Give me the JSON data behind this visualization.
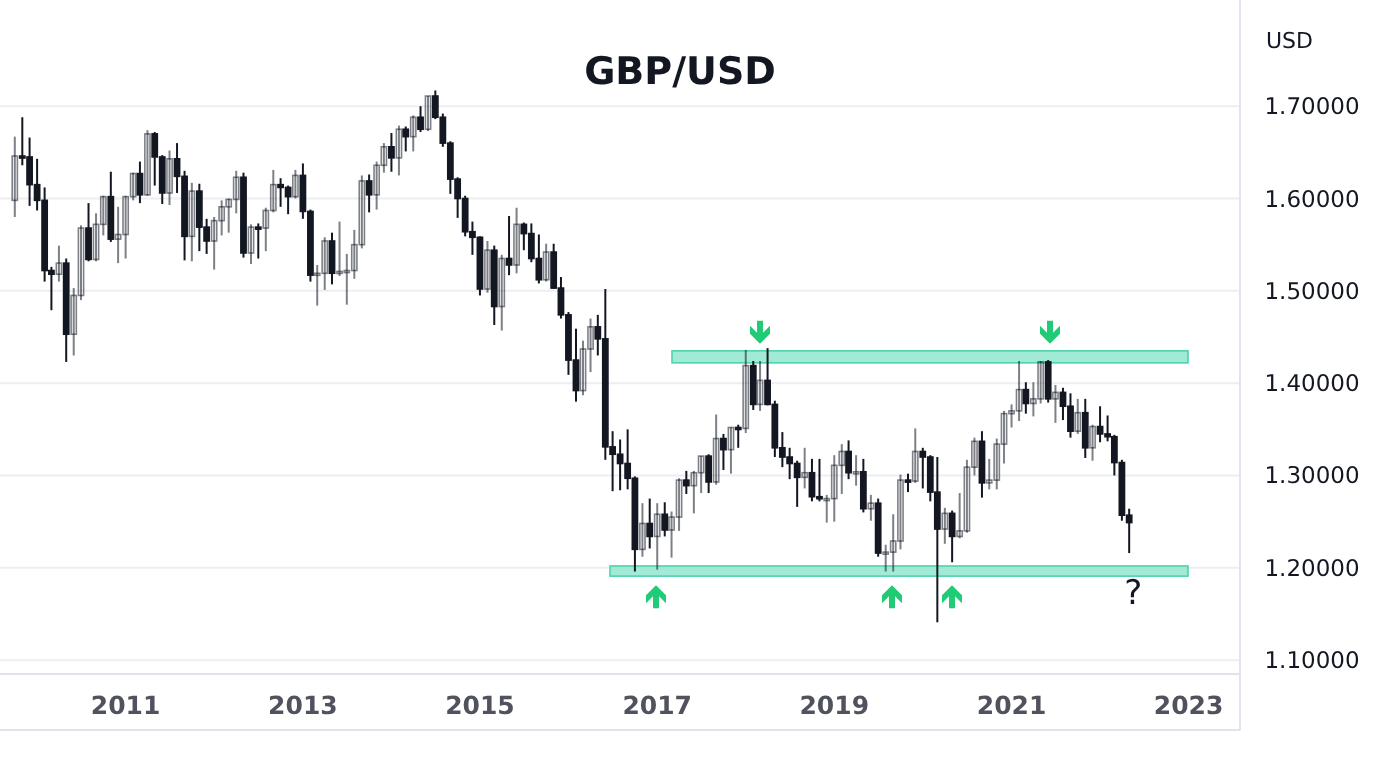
{
  "chart_data": {
    "type": "candlestick",
    "title": "GBP/USD",
    "ylabel": "USD",
    "xlim": [
      "2009-08",
      "2023-08"
    ],
    "xticks": [
      {
        "value": "2011",
        "label": "2011"
      },
      {
        "value": "2013",
        "label": "2013"
      },
      {
        "value": "2015",
        "label": "2015"
      },
      {
        "value": "2017",
        "label": "2017"
      },
      {
        "value": "2019",
        "label": "2019"
      },
      {
        "value": "2021",
        "label": "2021"
      },
      {
        "value": "2023",
        "label": "2023"
      }
    ],
    "ylim": [
      1.085,
      1.815
    ],
    "yticks": [
      {
        "value": 1.1,
        "label": "1.10000"
      },
      {
        "value": 1.2,
        "label": "1.20000"
      },
      {
        "value": 1.3,
        "label": "1.30000"
      },
      {
        "value": 1.4,
        "label": "1.40000"
      },
      {
        "value": 1.5,
        "label": "1.50000"
      },
      {
        "value": 1.6,
        "label": "1.60000"
      },
      {
        "value": 1.7,
        "label": "1.70000"
      }
    ],
    "grid": "y",
    "bands": [
      {
        "axis": "y",
        "from": 1.422,
        "to": 1.435,
        "color": "#8fe6cf"
      },
      {
        "axis": "y",
        "from": 1.191,
        "to": 1.202,
        "color": "#8fe6cf"
      }
    ],
    "annotations": [
      "?"
    ],
    "series": [
      {
        "color": "#131722",
        "x": [
          "2009-10",
          "2009-11",
          "2009-12",
          "2010-01",
          "2010-02",
          "2010-03",
          "2010-04",
          "2010-05",
          "2010-06",
          "2010-07",
          "2010-08",
          "2010-09",
          "2010-10",
          "2010-11",
          "2010-12",
          "2011-01",
          "2011-02",
          "2011-03",
          "2011-04",
          "2011-05",
          "2011-06",
          "2011-07",
          "2011-08",
          "2011-09",
          "2011-10",
          "2011-11",
          "2011-12",
          "2012-01",
          "2012-02",
          "2012-03",
          "2012-04",
          "2012-05",
          "2012-06",
          "2012-07",
          "2012-08",
          "2012-09",
          "2012-10",
          "2012-11",
          "2012-12",
          "2013-01",
          "2013-02",
          "2013-03",
          "2013-04",
          "2013-05",
          "2013-06",
          "2013-07",
          "2013-08",
          "2013-09",
          "2013-10",
          "2013-11",
          "2013-12",
          "2014-01",
          "2014-02",
          "2014-03",
          "2014-04",
          "2014-05",
          "2014-06",
          "2014-07",
          "2014-08",
          "2014-09",
          "2014-10",
          "2014-11",
          "2014-12",
          "2015-01",
          "2015-02",
          "2015-03",
          "2015-04",
          "2015-05",
          "2015-06",
          "2015-07",
          "2015-08",
          "2015-09",
          "2015-10",
          "2015-11",
          "2015-12",
          "2016-01",
          "2016-02",
          "2016-03",
          "2016-04",
          "2016-05",
          "2016-06",
          "2016-07",
          "2016-08",
          "2016-09",
          "2016-10",
          "2016-11",
          "2016-12",
          "2017-01",
          "2017-02",
          "2017-03",
          "2017-04",
          "2017-05",
          "2017-06",
          "2017-07",
          "2017-08",
          "2017-09",
          "2017-10",
          "2017-11",
          "2017-12",
          "2018-01",
          "2018-02",
          "2018-03",
          "2018-04",
          "2018-05",
          "2018-06",
          "2018-07",
          "2018-08",
          "2018-09",
          "2018-10",
          "2018-11",
          "2018-12",
          "2019-01",
          "2019-02",
          "2019-03",
          "2019-04",
          "2019-05",
          "2019-06",
          "2019-07",
          "2019-08",
          "2019-09",
          "2019-10",
          "2019-11",
          "2019-12",
          "2020-01",
          "2020-02",
          "2020-03",
          "2020-04",
          "2020-05",
          "2020-06",
          "2020-07",
          "2020-08",
          "2020-09",
          "2020-10",
          "2020-11",
          "2020-12",
          "2021-01",
          "2021-02",
          "2021-03",
          "2021-04",
          "2021-05",
          "2021-06",
          "2021-07",
          "2021-08",
          "2021-09",
          "2021-10",
          "2021-11",
          "2021-12",
          "2022-01",
          "2022-02",
          "2022-03",
          "2022-04",
          "2022-05"
        ],
        "ohlc": [
          [
            1.598,
            1.667,
            1.58,
            1.646
          ],
          [
            1.646,
            1.688,
            1.636,
            1.645
          ],
          [
            1.645,
            1.666,
            1.592,
            1.615
          ],
          [
            1.615,
            1.643,
            1.587,
            1.598
          ],
          [
            1.598,
            1.612,
            1.51,
            1.522
          ],
          [
            1.522,
            1.526,
            1.479,
            1.518
          ],
          [
            1.518,
            1.549,
            1.51,
            1.53
          ],
          [
            1.53,
            1.535,
            1.423,
            1.453
          ],
          [
            1.453,
            1.503,
            1.43,
            1.495
          ],
          [
            1.495,
            1.571,
            1.49,
            1.568
          ],
          [
            1.568,
            1.595,
            1.532,
            1.534
          ],
          [
            1.534,
            1.584,
            1.532,
            1.572
          ],
          [
            1.572,
            1.603,
            1.56,
            1.602
          ],
          [
            1.602,
            1.629,
            1.553,
            1.556
          ],
          [
            1.556,
            1.591,
            1.53,
            1.561
          ],
          [
            1.561,
            1.603,
            1.535,
            1.602
          ],
          [
            1.602,
            1.628,
            1.598,
            1.627
          ],
          [
            1.627,
            1.64,
            1.595,
            1.604
          ],
          [
            1.604,
            1.674,
            1.603,
            1.67
          ],
          [
            1.67,
            1.672,
            1.614,
            1.645
          ],
          [
            1.645,
            1.647,
            1.594,
            1.606
          ],
          [
            1.606,
            1.652,
            1.593,
            1.643
          ],
          [
            1.643,
            1.66,
            1.606,
            1.624
          ],
          [
            1.624,
            1.63,
            1.533,
            1.559
          ],
          [
            1.559,
            1.617,
            1.532,
            1.608
          ],
          [
            1.608,
            1.616,
            1.543,
            1.569
          ],
          [
            1.569,
            1.578,
            1.54,
            1.554
          ],
          [
            1.554,
            1.58,
            1.523,
            1.576
          ],
          [
            1.576,
            1.598,
            1.56,
            1.591
          ],
          [
            1.591,
            1.6,
            1.563,
            1.599
          ],
          [
            1.599,
            1.63,
            1.584,
            1.623
          ],
          [
            1.623,
            1.628,
            1.536,
            1.541
          ],
          [
            1.541,
            1.572,
            1.529,
            1.569
          ],
          [
            1.569,
            1.573,
            1.535,
            1.568
          ],
          [
            1.568,
            1.59,
            1.543,
            1.587
          ],
          [
            1.587,
            1.631,
            1.585,
            1.615
          ],
          [
            1.615,
            1.622,
            1.591,
            1.612
          ],
          [
            1.612,
            1.614,
            1.583,
            1.602
          ],
          [
            1.602,
            1.631,
            1.6,
            1.625
          ],
          [
            1.625,
            1.638,
            1.578,
            1.586
          ],
          [
            1.586,
            1.588,
            1.51,
            1.517
          ],
          [
            1.517,
            1.528,
            1.484,
            1.519
          ],
          [
            1.519,
            1.558,
            1.501,
            1.554
          ],
          [
            1.554,
            1.563,
            1.507,
            1.519
          ],
          [
            1.519,
            1.575,
            1.516,
            1.521
          ],
          [
            1.521,
            1.54,
            1.485,
            1.522
          ],
          [
            1.522,
            1.566,
            1.513,
            1.55
          ],
          [
            1.55,
            1.625,
            1.546,
            1.619
          ],
          [
            1.619,
            1.626,
            1.585,
            1.604
          ],
          [
            1.604,
            1.64,
            1.588,
            1.636
          ],
          [
            1.636,
            1.66,
            1.628,
            1.656
          ],
          [
            1.656,
            1.671,
            1.629,
            1.644
          ],
          [
            1.644,
            1.679,
            1.625,
            1.675
          ],
          [
            1.675,
            1.678,
            1.651,
            1.667
          ],
          [
            1.667,
            1.69,
            1.651,
            1.688
          ],
          [
            1.688,
            1.7,
            1.672,
            1.675
          ],
          [
            1.675,
            1.711,
            1.673,
            1.711
          ],
          [
            1.711,
            1.717,
            1.686,
            1.688
          ],
          [
            1.688,
            1.692,
            1.656,
            1.66
          ],
          [
            1.66,
            1.662,
            1.605,
            1.621
          ],
          [
            1.621,
            1.623,
            1.579,
            1.6
          ],
          [
            1.6,
            1.603,
            1.559,
            1.564
          ],
          [
            1.564,
            1.575,
            1.539,
            1.558
          ],
          [
            1.558,
            1.559,
            1.495,
            1.502
          ],
          [
            1.502,
            1.554,
            1.498,
            1.544
          ],
          [
            1.544,
            1.549,
            1.463,
            1.483
          ],
          [
            1.483,
            1.539,
            1.457,
            1.535
          ],
          [
            1.535,
            1.581,
            1.517,
            1.528
          ],
          [
            1.528,
            1.59,
            1.519,
            1.572
          ],
          [
            1.572,
            1.574,
            1.544,
            1.562
          ],
          [
            1.562,
            1.573,
            1.531,
            1.535
          ],
          [
            1.535,
            1.561,
            1.508,
            1.512
          ],
          [
            1.512,
            1.551,
            1.51,
            1.542
          ],
          [
            1.542,
            1.551,
            1.502,
            1.503
          ],
          [
            1.503,
            1.515,
            1.47,
            1.474
          ],
          [
            1.474,
            1.477,
            1.409,
            1.425
          ],
          [
            1.425,
            1.459,
            1.38,
            1.392
          ],
          [
            1.392,
            1.446,
            1.387,
            1.437
          ],
          [
            1.437,
            1.47,
            1.412,
            1.461
          ],
          [
            1.461,
            1.474,
            1.43,
            1.448
          ],
          [
            1.448,
            1.502,
            1.317,
            1.331
          ],
          [
            1.331,
            1.348,
            1.283,
            1.323
          ],
          [
            1.323,
            1.339,
            1.284,
            1.313
          ],
          [
            1.313,
            1.35,
            1.285,
            1.297
          ],
          [
            1.297,
            1.299,
            1.196,
            1.22
          ],
          [
            1.22,
            1.27,
            1.212,
            1.248
          ],
          [
            1.248,
            1.275,
            1.221,
            1.234
          ],
          [
            1.234,
            1.27,
            1.198,
            1.258
          ],
          [
            1.258,
            1.271,
            1.234,
            1.241
          ],
          [
            1.241,
            1.261,
            1.211,
            1.255
          ],
          [
            1.255,
            1.297,
            1.24,
            1.295
          ],
          [
            1.295,
            1.305,
            1.28,
            1.289
          ],
          [
            1.289,
            1.305,
            1.259,
            1.303
          ],
          [
            1.303,
            1.321,
            1.281,
            1.321
          ],
          [
            1.321,
            1.323,
            1.281,
            1.293
          ],
          [
            1.293,
            1.366,
            1.29,
            1.34
          ],
          [
            1.34,
            1.345,
            1.306,
            1.328
          ],
          [
            1.328,
            1.352,
            1.302,
            1.352
          ],
          [
            1.352,
            1.355,
            1.33,
            1.351
          ],
          [
            1.351,
            1.436,
            1.346,
            1.419
          ],
          [
            1.419,
            1.424,
            1.371,
            1.377
          ],
          [
            1.377,
            1.424,
            1.37,
            1.403
          ],
          [
            1.403,
            1.438,
            1.376,
            1.377
          ],
          [
            1.377,
            1.381,
            1.32,
            1.33
          ],
          [
            1.33,
            1.347,
            1.309,
            1.32
          ],
          [
            1.32,
            1.33,
            1.296,
            1.313
          ],
          [
            1.313,
            1.316,
            1.266,
            1.298
          ],
          [
            1.298,
            1.33,
            1.286,
            1.303
          ],
          [
            1.303,
            1.318,
            1.272,
            1.277
          ],
          [
            1.277,
            1.318,
            1.272,
            1.275
          ],
          [
            1.275,
            1.279,
            1.249,
            1.275
          ],
          [
            1.275,
            1.322,
            1.25,
            1.311
          ],
          [
            1.311,
            1.334,
            1.28,
            1.326
          ],
          [
            1.326,
            1.338,
            1.296,
            1.303
          ],
          [
            1.303,
            1.322,
            1.289,
            1.304
          ],
          [
            1.304,
            1.318,
            1.26,
            1.264
          ],
          [
            1.264,
            1.279,
            1.251,
            1.27
          ],
          [
            1.27,
            1.275,
            1.212,
            1.216
          ],
          [
            1.216,
            1.225,
            1.196,
            1.217
          ],
          [
            1.217,
            1.258,
            1.196,
            1.229
          ],
          [
            1.229,
            1.301,
            1.22,
            1.295
          ],
          [
            1.295,
            1.302,
            1.282,
            1.294
          ],
          [
            1.294,
            1.351,
            1.292,
            1.326
          ],
          [
            1.326,
            1.33,
            1.286,
            1.32
          ],
          [
            1.32,
            1.322,
            1.272,
            1.282
          ],
          [
            1.282,
            1.32,
            1.141,
            1.242
          ],
          [
            1.242,
            1.265,
            1.226,
            1.259
          ],
          [
            1.259,
            1.262,
            1.206,
            1.234
          ],
          [
            1.234,
            1.281,
            1.232,
            1.24
          ],
          [
            1.24,
            1.317,
            1.238,
            1.309
          ],
          [
            1.309,
            1.341,
            1.3,
            1.337
          ],
          [
            1.337,
            1.348,
            1.276,
            1.292
          ],
          [
            1.292,
            1.318,
            1.285,
            1.295
          ],
          [
            1.295,
            1.34,
            1.285,
            1.334
          ],
          [
            1.334,
            1.37,
            1.313,
            1.367
          ],
          [
            1.367,
            1.377,
            1.352,
            1.37
          ],
          [
            1.37,
            1.424,
            1.359,
            1.393
          ],
          [
            1.393,
            1.401,
            1.367,
            1.378
          ],
          [
            1.378,
            1.401,
            1.364,
            1.383
          ],
          [
            1.383,
            1.424,
            1.378,
            1.423
          ],
          [
            1.423,
            1.425,
            1.379,
            1.383
          ],
          [
            1.383,
            1.398,
            1.357,
            1.39
          ],
          [
            1.39,
            1.395,
            1.36,
            1.375
          ],
          [
            1.375,
            1.389,
            1.341,
            1.348
          ],
          [
            1.348,
            1.383,
            1.345,
            1.368
          ],
          [
            1.368,
            1.383,
            1.319,
            1.33
          ],
          [
            1.33,
            1.355,
            1.316,
            1.353
          ],
          [
            1.353,
            1.375,
            1.336,
            1.345
          ],
          [
            1.345,
            1.365,
            1.337,
            1.342
          ],
          [
            1.342,
            1.344,
            1.3,
            1.314
          ],
          [
            1.314,
            1.317,
            1.251,
            1.257
          ],
          [
            1.257,
            1.264,
            1.216,
            1.249
          ]
        ]
      }
    ]
  }
}
